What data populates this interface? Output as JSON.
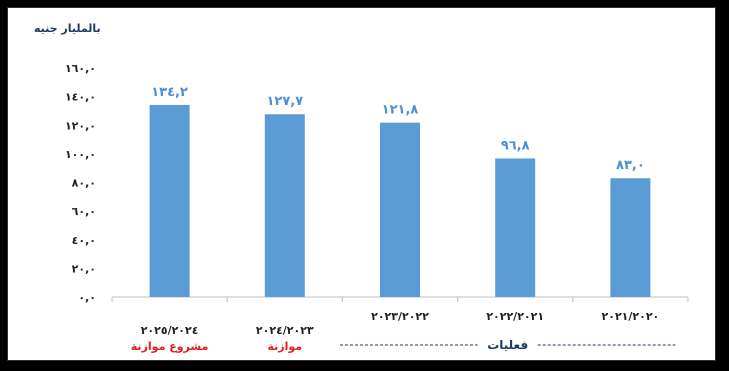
{
  "chart_data": {
    "type": "bar",
    "unit_label": "بالمليار جنيه",
    "categories": [
      "٢٠٢٥/٢٠٢٤",
      "٢٠٢٤/٢٠٢٣",
      "٢٠٢٣/٢٠٢٢",
      "٢٠٢٢/٢٠٢١",
      "٢٠٢١/٢٠٢٠"
    ],
    "values": [
      134.2,
      127.7,
      121.8,
      96.8,
      83.0
    ],
    "value_labels": [
      "١٣٤,٢",
      "١٢٧,٧",
      "١٢١,٨",
      "٩٦,٨",
      "٨٣,٠"
    ],
    "y_ticks": [
      {
        "value": 0,
        "label": "٠,٠"
      },
      {
        "value": 20,
        "label": "٢٠,٠"
      },
      {
        "value": 40,
        "label": "٤٠,٠"
      },
      {
        "value": 60,
        "label": "٦٠,٠"
      },
      {
        "value": 80,
        "label": "٨٠,٠"
      },
      {
        "value": 100,
        "label": "١٠٠,٠"
      },
      {
        "value": 120,
        "label": "١٢٠,٠"
      },
      {
        "value": 140,
        "label": "١٤٠,٠"
      },
      {
        "value": 160,
        "label": "١٦٠,٠"
      }
    ],
    "ylim": [
      0,
      160
    ],
    "grid": false,
    "bar_color": "#5b9bd5",
    "label_color": "#4a90d9",
    "category_notes": [
      {
        "category_index": 0,
        "text": "مشروع موازنة",
        "color": "#e02020"
      },
      {
        "category_index": 1,
        "text": "موازنة",
        "color": "#e02020"
      }
    ],
    "group_note": {
      "text": "فعليات",
      "from_index": 2,
      "to_index": 4,
      "color": "#1f3864"
    }
  }
}
